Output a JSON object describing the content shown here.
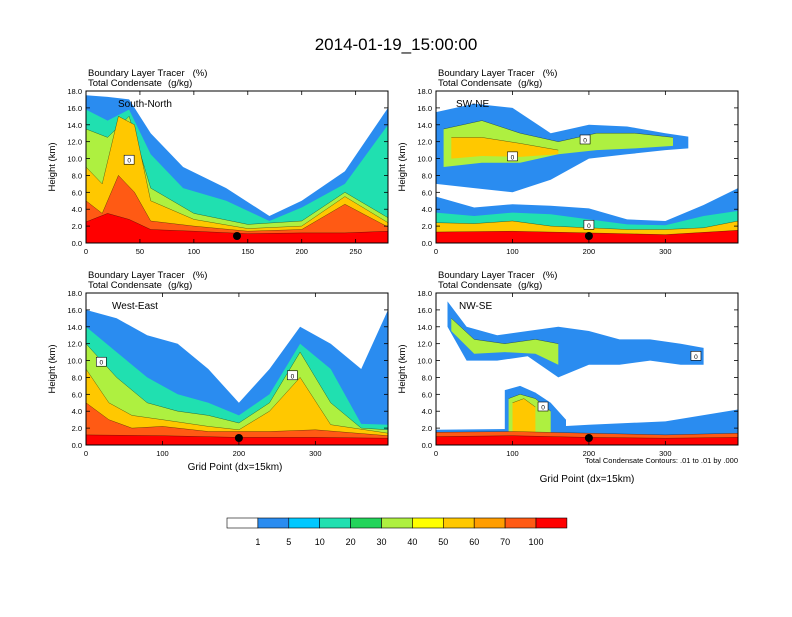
{
  "title": "2014-01-19_15:00:00",
  "colors": {
    "palette": [
      "#ffffff",
      "#2a8cf0",
      "#00c8ff",
      "#20e0b0",
      "#22d45a",
      "#aef040",
      "#ffff00",
      "#ffc800",
      "#ff9d00",
      "#ff5a14",
      "#ff0000"
    ],
    "contour": "#000000",
    "frame": "#000000"
  },
  "legend": {
    "labels": [
      "1",
      "5",
      "10",
      "20",
      "30",
      "40",
      "50",
      "60",
      "70",
      "100"
    ]
  },
  "note": "Total Condensate Contours: .01 to .01 by .000",
  "chart_data": [
    {
      "type": "heatmap",
      "panel": "South-North",
      "line1": "Boundary Layer Tracer",
      "unit1": "(%)",
      "line2": "Total Condensate",
      "unit2": "(g/kg)",
      "ylabel": "Height (km)",
      "xlabel": "",
      "xlim": [
        0,
        280
      ],
      "ylim": [
        0,
        18
      ],
      "xticks": [
        "0",
        "50",
        "100",
        "150",
        "200",
        "250"
      ],
      "xtick_values": [
        0,
        50,
        100,
        150,
        200,
        250
      ],
      "yticks": [
        "0.0",
        "2.0",
        "4.0",
        "6.0",
        "8.0",
        "10.0",
        "12.0",
        "14.0",
        "16.0",
        "18.0"
      ],
      "marker_x": 140,
      "contour_labels": [
        {
          "x": 40,
          "y": 9.8,
          "text": "0"
        }
      ],
      "layers": [
        {
          "level": 1,
          "x": [
            0,
            20,
            40,
            60,
            90,
            130,
            170,
            200,
            240,
            280
          ],
          "top": [
            17.5,
            17.3,
            17,
            13,
            9,
            6.5,
            3.2,
            5,
            8.5,
            16
          ],
          "bottom": [
            0,
            0,
            0,
            0,
            0,
            0,
            0,
            0,
            0,
            0
          ]
        },
        {
          "level": 3,
          "x": [
            0,
            20,
            40,
            60,
            90,
            130,
            170,
            200,
            240,
            280
          ],
          "top": [
            15.8,
            14.5,
            15.8,
            10.5,
            6.5,
            5,
            2.6,
            4.2,
            7,
            14
          ],
          "bottom": [
            0,
            0,
            0,
            0,
            0,
            0,
            0,
            0,
            0,
            0
          ]
        },
        {
          "level": 5,
          "x": [
            0,
            20,
            40,
            60,
            100,
            150,
            200,
            240,
            280
          ],
          "top": [
            13.5,
            12.5,
            15,
            6.5,
            3.5,
            2.2,
            2.6,
            6,
            3
          ],
          "bottom": [
            0,
            0,
            0,
            0,
            0,
            0,
            0,
            0,
            0
          ]
        },
        {
          "level": 7,
          "x": [
            0,
            15,
            30,
            45,
            60,
            100,
            150,
            200,
            240,
            280
          ],
          "top": [
            9,
            7,
            15,
            14,
            5,
            2.8,
            1.7,
            2,
            5.5,
            2.4
          ],
          "bottom": [
            0,
            0,
            0,
            0,
            0,
            0,
            0,
            0,
            0,
            0
          ]
        },
        {
          "level": 9,
          "x": [
            0,
            15,
            30,
            45,
            60,
            100,
            150,
            200,
            240,
            280
          ],
          "top": [
            5,
            3.5,
            8,
            6,
            2.6,
            2,
            1.4,
            1.6,
            4.6,
            1.9
          ],
          "bottom": [
            0,
            0,
            0,
            0,
            0,
            0,
            0,
            0,
            0,
            0
          ]
        },
        {
          "level": 10,
          "x": [
            0,
            20,
            40,
            60,
            100,
            150,
            200,
            240,
            280
          ],
          "top": [
            2.5,
            3.5,
            2.8,
            1.6,
            1.4,
            1.1,
            1.2,
            1.2,
            1.4
          ],
          "bottom": [
            0,
            0,
            0,
            0,
            0,
            0,
            0,
            0,
            0
          ]
        }
      ]
    },
    {
      "type": "heatmap",
      "panel": "SW-NE",
      "line1": "Boundary Layer Tracer",
      "unit1": "(%)",
      "line2": "Total Condensate",
      "unit2": "(g/kg)",
      "ylabel": "Height (km)",
      "xlabel": "",
      "xlim": [
        0,
        395
      ],
      "ylim": [
        0,
        18
      ],
      "xticks": [
        "0",
        "100",
        "200",
        "300"
      ],
      "xtick_values": [
        0,
        100,
        200,
        300
      ],
      "yticks": [
        "0.0",
        "2.0",
        "4.0",
        "6.0",
        "8.0",
        "10.0",
        "12.0",
        "14.0",
        "16.0",
        "18.0"
      ],
      "marker_x": 200,
      "contour_labels": [
        {
          "x": 100,
          "y": 10.2,
          "text": "0"
        },
        {
          "x": 195,
          "y": 12.2,
          "text": "0"
        },
        {
          "x": 200,
          "y": 2.1,
          "text": "0"
        }
      ],
      "layers": [
        {
          "level": 1,
          "x": [
            0,
            50,
            100,
            150,
            200,
            250,
            300,
            350,
            395
          ],
          "top": [
            5.5,
            4.2,
            4.6,
            4.4,
            4.1,
            2.8,
            2.6,
            4.5,
            6.5
          ],
          "bottom": [
            0,
            0,
            0,
            0,
            0,
            0,
            0,
            0,
            0
          ]
        },
        {
          "level": 1,
          "x": [
            0,
            50,
            100,
            150,
            200,
            250,
            300,
            330
          ],
          "top": [
            15.5,
            16.5,
            16,
            13,
            14,
            13.8,
            13,
            12.6
          ],
          "bottom": [
            7,
            6.5,
            6,
            7.5,
            10,
            10.5,
            11,
            11.2
          ]
        },
        {
          "level": 5,
          "x": [
            10,
            60,
            110,
            160,
            210,
            260,
            310
          ],
          "top": [
            13.5,
            14.5,
            13,
            12,
            13,
            13,
            12.5
          ],
          "bottom": [
            9,
            9.5,
            9.5,
            10.5,
            11,
            11.2,
            11.5
          ]
        },
        {
          "level": 7,
          "x": [
            20,
            60,
            110,
            160
          ],
          "top": [
            12.5,
            12.5,
            11.8,
            11
          ],
          "bottom": [
            10,
            10.3,
            10.2,
            10.5
          ]
        },
        {
          "level": 3,
          "x": [
            0,
            50,
            100,
            150,
            200,
            250,
            300,
            350,
            395
          ],
          "top": [
            3.6,
            3.2,
            3.6,
            3.4,
            2.8,
            2.2,
            2.1,
            3.2,
            3.8
          ],
          "bottom": [
            0,
            0,
            0,
            0,
            0,
            0,
            0,
            0,
            0
          ]
        },
        {
          "level": 7,
          "x": [
            0,
            50,
            100,
            150,
            200,
            250,
            300,
            350,
            395
          ],
          "top": [
            2.4,
            2.3,
            2.6,
            2,
            1.8,
            1.6,
            1.6,
            1.8,
            2.6
          ],
          "bottom": [
            0,
            0,
            0,
            0,
            0,
            0,
            0,
            0,
            0
          ]
        },
        {
          "level": 10,
          "x": [
            0,
            100,
            200,
            300,
            395
          ],
          "top": [
            1.3,
            1.4,
            1.2,
            1,
            1.5
          ],
          "bottom": [
            0,
            0,
            0,
            0,
            0
          ]
        }
      ]
    },
    {
      "type": "heatmap",
      "panel": "West-East",
      "line1": "Boundary Layer Tracer",
      "unit1": "(%)",
      "line2": "Total Condensate",
      "unit2": "(g/kg)",
      "ylabel": "Height (km)",
      "xlabel": "Grid Point (dx=15km)",
      "xlim": [
        0,
        395
      ],
      "ylim": [
        0,
        18
      ],
      "xticks": [
        "0",
        "100",
        "200",
        "300"
      ],
      "xtick_values": [
        0,
        100,
        200,
        300
      ],
      "yticks": [
        "0.0",
        "2.0",
        "4.0",
        "6.0",
        "8.0",
        "10.0",
        "12.0",
        "14.0",
        "16.0",
        "18.0"
      ],
      "marker_x": 200,
      "contour_labels": [
        {
          "x": 20,
          "y": 9.8,
          "text": "0"
        },
        {
          "x": 270,
          "y": 8.2,
          "text": "0"
        }
      ],
      "layers": [
        {
          "level": 1,
          "x": [
            0,
            40,
            80,
            120,
            160,
            200,
            240,
            280,
            320,
            360,
            395
          ],
          "top": [
            16,
            15,
            13,
            12,
            9,
            5,
            9,
            14,
            12,
            9,
            16
          ],
          "bottom": [
            0,
            0,
            0,
            0,
            0,
            0,
            0,
            0,
            0,
            0,
            0
          ]
        },
        {
          "level": 3,
          "x": [
            0,
            40,
            80,
            120,
            160,
            200,
            240,
            280,
            320,
            360,
            395
          ],
          "top": [
            14,
            11,
            8,
            6,
            5,
            3.5,
            6,
            12,
            9,
            2.5,
            2.4
          ],
          "bottom": [
            0,
            0,
            0,
            0,
            0,
            0,
            0,
            0,
            0,
            0,
            0
          ]
        },
        {
          "level": 5,
          "x": [
            0,
            40,
            80,
            120,
            160,
            200,
            240,
            280,
            320,
            360,
            395
          ],
          "top": [
            12,
            8,
            5,
            4,
            3.5,
            2.6,
            5,
            11,
            5,
            2,
            1.8
          ],
          "bottom": [
            0,
            0,
            0,
            0,
            0,
            0,
            0,
            0,
            0,
            0,
            0
          ]
        },
        {
          "level": 7,
          "x": [
            0,
            30,
            60,
            100,
            160,
            200,
            240,
            280,
            320,
            395
          ],
          "top": [
            9,
            5,
            3.5,
            3,
            2.2,
            1.8,
            4,
            8,
            2.4,
            1.4
          ],
          "bottom": [
            0,
            0,
            0,
            0,
            0,
            0,
            0,
            0,
            0,
            0
          ]
        },
        {
          "level": 9,
          "x": [
            0,
            30,
            60,
            100,
            160,
            240,
            300,
            395
          ],
          "top": [
            5,
            3,
            2,
            2.2,
            1.6,
            1.6,
            1.8,
            1.1
          ],
          "bottom": [
            0,
            0,
            0,
            0,
            0,
            0,
            0,
            0
          ]
        },
        {
          "level": 10,
          "x": [
            0,
            100,
            200,
            300,
            395
          ],
          "top": [
            1.2,
            1.1,
            0.9,
            0.9,
            0.8
          ],
          "bottom": [
            0,
            0,
            0,
            0,
            0
          ]
        }
      ]
    },
    {
      "type": "heatmap",
      "panel": "NW-SE",
      "line1": "Boundary Layer Tracer",
      "unit1": "(%)",
      "line2": "Total Condensate",
      "unit2": "(g/kg)",
      "ylabel": "Height (km)",
      "xlabel": "Grid Point (dx=15km)",
      "xlim": [
        0,
        395
      ],
      "ylim": [
        0,
        18
      ],
      "xticks": [
        "0",
        "100",
        "200",
        "300"
      ],
      "xtick_values": [
        0,
        100,
        200,
        300
      ],
      "yticks": [
        "0.0",
        "2.0",
        "4.0",
        "6.0",
        "8.0",
        "10.0",
        "12.0",
        "14.0",
        "16.0",
        "18.0"
      ],
      "marker_x": 200,
      "contour_labels": [
        {
          "x": 140,
          "y": 4.5,
          "text": "0"
        },
        {
          "x": 340,
          "y": 10.5,
          "text": "0"
        }
      ],
      "layers": [
        {
          "level": 1,
          "x": [
            0,
            100,
            200,
            300,
            395
          ],
          "top": [
            1.8,
            1.9,
            2.4,
            2.8,
            4.2
          ],
          "bottom": [
            0,
            0,
            0,
            0,
            0
          ]
        },
        {
          "level": 1,
          "x": [
            90,
            110,
            130,
            150,
            170
          ],
          "top": [
            6.5,
            7,
            6.2,
            5,
            3
          ],
          "bottom": [
            0.5,
            0.5,
            0.5,
            0.5,
            0.5
          ]
        },
        {
          "level": 1,
          "x": [
            15,
            40,
            80,
            120,
            160,
            200,
            240,
            280,
            320,
            350
          ],
          "top": [
            17,
            14,
            13,
            13.5,
            14,
            13.5,
            12.5,
            12.5,
            12,
            11.5
          ],
          "bottom": [
            14,
            10,
            10,
            10.5,
            8,
            9.5,
            9.5,
            10,
            9.5,
            9.5
          ]
        },
        {
          "level": 5,
          "x": [
            20,
            50,
            90,
            130,
            160
          ],
          "top": [
            15,
            12.5,
            12,
            12.5,
            12
          ],
          "bottom": [
            13.5,
            10.8,
            11,
            10.8,
            9.5
          ]
        },
        {
          "level": 5,
          "x": [
            95,
            110,
            130,
            150
          ],
          "top": [
            5.5,
            6,
            5.5,
            4
          ],
          "bottom": [
            0.5,
            0.5,
            0.5,
            0.5
          ]
        },
        {
          "level": 7,
          "x": [
            100,
            115,
            130
          ],
          "top": [
            5,
            5.5,
            4.5
          ],
          "bottom": [
            1,
            1,
            1
          ]
        },
        {
          "level": 9,
          "x": [
            0,
            100,
            200,
            300,
            395
          ],
          "top": [
            1.5,
            1.6,
            1.4,
            1.2,
            1.4
          ],
          "bottom": [
            0,
            0,
            0,
            0,
            0
          ]
        },
        {
          "level": 10,
          "x": [
            0,
            100,
            200,
            300,
            395
          ],
          "top": [
            1,
            1.1,
            0.9,
            0.8,
            0.9
          ],
          "bottom": [
            0,
            0,
            0,
            0,
            0
          ]
        }
      ]
    }
  ]
}
